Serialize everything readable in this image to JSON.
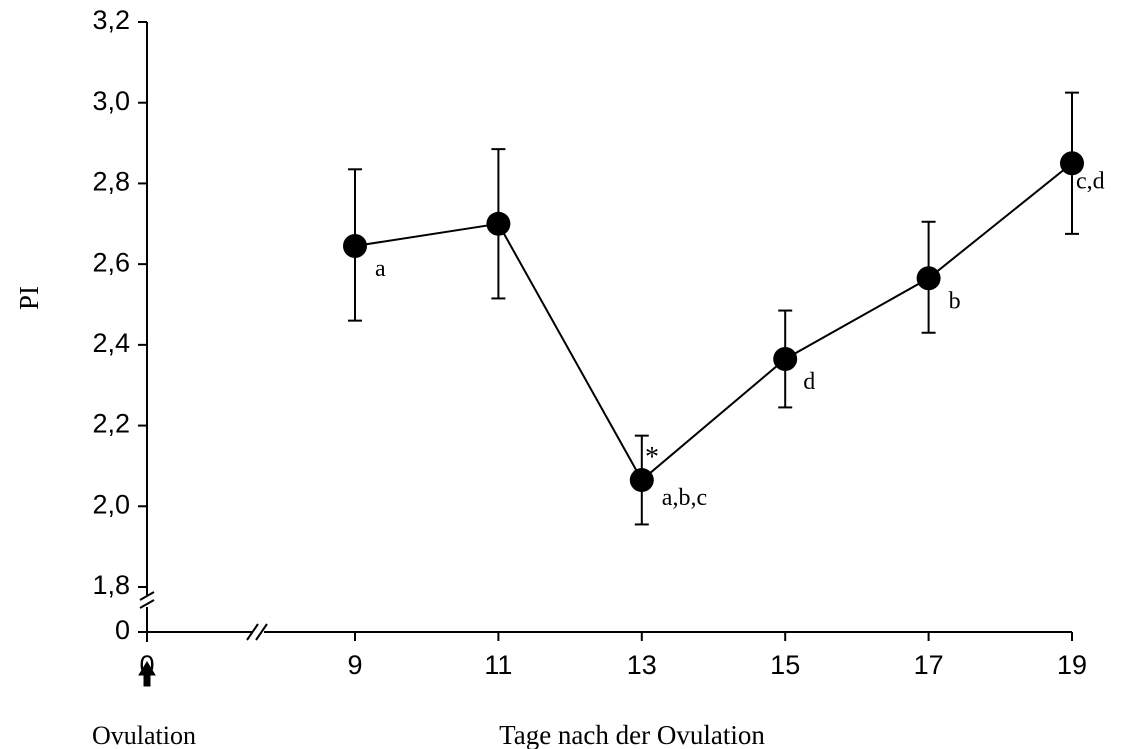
{
  "chart_data": {
    "type": "line",
    "title": "",
    "xlabel": "Tage nach der Ovulation",
    "ylabel": "PI",
    "y_ticks": [
      "1,8",
      "2,0",
      "2,2",
      "2,4",
      "2,6",
      "2,8",
      "3,0",
      "3,2"
    ],
    "y_zero_label": "0",
    "x_ticks": [
      "0",
      "9",
      "11",
      "13",
      "15",
      "17",
      "19"
    ],
    "ylim": [
      1.8,
      3.2
    ],
    "axis_break": true,
    "grid": false,
    "marker_annotation": {
      "x": 0,
      "label": "Ovulation",
      "symbol": "arrow-up"
    },
    "series": [
      {
        "x": [
          9,
          11,
          13,
          15,
          17,
          19
        ],
        "y": [
          2.645,
          2.7,
          2.065,
          2.365,
          2.565,
          2.85
        ],
        "err_upper": [
          2.835,
          2.885,
          2.175,
          2.485,
          2.705,
          3.025
        ],
        "err_lower": [
          2.46,
          2.515,
          1.955,
          2.245,
          2.43,
          2.675
        ],
        "labels": [
          "a",
          "",
          "a,b,c",
          "d",
          "b",
          "c,d"
        ]
      }
    ],
    "annotations": [
      {
        "x": 13,
        "text": "*"
      }
    ]
  }
}
